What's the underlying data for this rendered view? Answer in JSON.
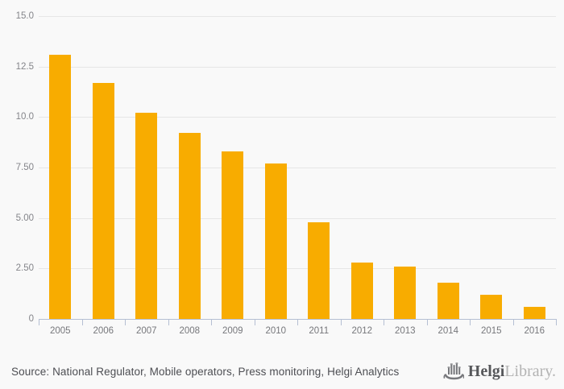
{
  "chart_data": {
    "type": "bar",
    "title": "",
    "xlabel": "",
    "ylabel": "",
    "categories": [
      "2005",
      "2006",
      "2007",
      "2008",
      "2009",
      "2010",
      "2011",
      "2012",
      "2013",
      "2014",
      "2015",
      "2016"
    ],
    "values": [
      13.1,
      11.7,
      10.2,
      9.2,
      8.3,
      7.7,
      4.8,
      2.8,
      2.6,
      1.8,
      1.2,
      0.6
    ],
    "ylim": [
      0,
      15
    ],
    "yticks": [
      {
        "value": 15,
        "label": "15.0"
      },
      {
        "value": 12.5,
        "label": "12.5"
      },
      {
        "value": 10,
        "label": "10.0"
      },
      {
        "value": 7.5,
        "label": "7.50"
      },
      {
        "value": 5,
        "label": "5.00"
      },
      {
        "value": 2.5,
        "label": "2.50"
      },
      {
        "value": 0,
        "label": "0"
      }
    ],
    "grid": true,
    "legend_position": "none",
    "bar_color": "#F8AC00"
  },
  "colors": {
    "background": "#f9f9f9",
    "gridline": "#e6e6e6",
    "axis": "#b5bfd3",
    "ytick_label": "#84858a",
    "xtick_label": "#76777b",
    "source_text": "#4d4e53"
  },
  "footer": {
    "source_text": "Source: National Regulator, Mobile operators, Press monitoring, Helgi Analytics",
    "logo": {
      "icon": "ship-bars-icon",
      "brand_primary": "Helgi",
      "brand_secondary": "Library."
    }
  }
}
